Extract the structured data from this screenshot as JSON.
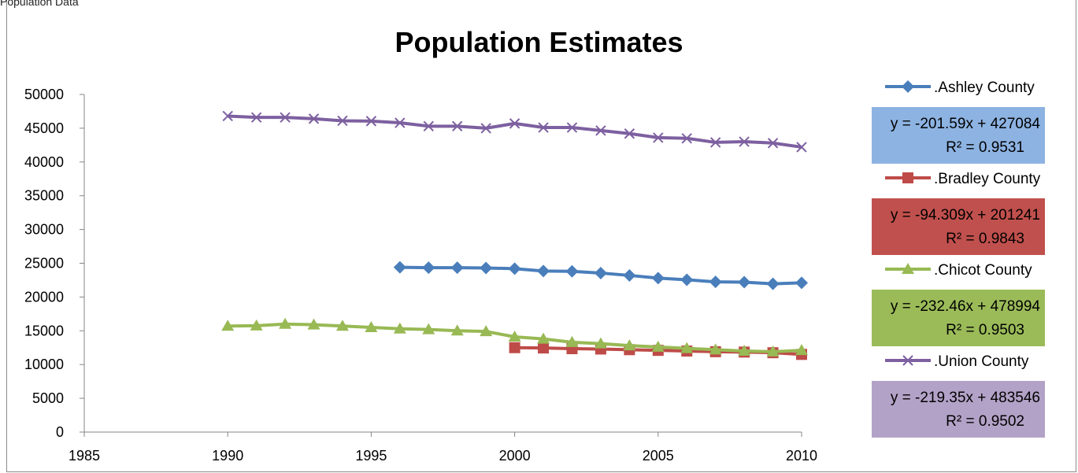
{
  "page": {
    "top_text": "Population Data"
  },
  "colors": {
    "ashley": "#4a7ebb",
    "bradley": "#be4b48",
    "chicot": "#98b954",
    "union": "#7d60a0",
    "ashley_box": "#8db3e2",
    "bradley_box": "#c0504d",
    "chicot_box": "#9bbb59",
    "union_box": "#b3a2c7"
  },
  "chart_data": {
    "type": "line",
    "title": "Population Estimates",
    "xlabel": "",
    "ylabel": "",
    "xlim": [
      1985,
      2010
    ],
    "ylim": [
      0,
      50000
    ],
    "x_ticks": [
      "1985",
      "1990",
      "1995",
      "2000",
      "2005",
      "2010"
    ],
    "y_ticks": [
      "0",
      "5000",
      "10000",
      "15000",
      "20000",
      "25000",
      "30000",
      "35000",
      "40000",
      "45000",
      "50000"
    ],
    "grid": false,
    "legend_position": "right",
    "series": [
      {
        "name": ".Ashley County",
        "marker": "diamond",
        "color_key": "ashley",
        "x": [
          1996,
          1997,
          1998,
          1999,
          2000,
          2001,
          2002,
          2003,
          2004,
          2005,
          2006,
          2007,
          2008,
          2009,
          2010
        ],
        "values": [
          24400,
          24350,
          24350,
          24300,
          24200,
          23850,
          23800,
          23550,
          23200,
          22800,
          22550,
          22250,
          22200,
          21950,
          22100
        ],
        "trendline_eq": "y = -201.59x + 427084",
        "trendline_r2": "R² = 0.9531"
      },
      {
        "name": ".Bradley County",
        "marker": "square",
        "color_key": "bradley",
        "x": [
          2000,
          2001,
          2002,
          2003,
          2004,
          2005,
          2006,
          2007,
          2008,
          2009,
          2010
        ],
        "values": [
          12500,
          12450,
          12350,
          12300,
          12200,
          12100,
          12000,
          11900,
          11850,
          11750,
          11500
        ],
        "trendline_eq": "y = -94.309x + 201241",
        "trendline_r2": "R² = 0.9843"
      },
      {
        "name": ".Chicot County",
        "marker": "triangle",
        "color_key": "chicot",
        "x": [
          1990,
          1991,
          1992,
          1993,
          1994,
          1995,
          1996,
          1997,
          1998,
          1999,
          2000,
          2001,
          2002,
          2003,
          2004,
          2005,
          2006,
          2007,
          2008,
          2009,
          2010
        ],
        "values": [
          15700,
          15750,
          16000,
          15900,
          15700,
          15500,
          15300,
          15200,
          15000,
          14900,
          14100,
          13800,
          13300,
          13100,
          12800,
          12600,
          12400,
          12200,
          12000,
          11900,
          12100
        ],
        "trendline_eq": "y = -232.46x + 478994",
        "trendline_r2": "R² = 0.9503"
      },
      {
        "name": ".Union County",
        "marker": "x",
        "color_key": "union",
        "x": [
          1990,
          1991,
          1992,
          1993,
          1994,
          1995,
          1996,
          1997,
          1998,
          1999,
          2000,
          2001,
          2002,
          2003,
          2004,
          2005,
          2006,
          2007,
          2008,
          2009,
          2010
        ],
        "values": [
          46800,
          46600,
          46600,
          46400,
          46100,
          46050,
          45800,
          45300,
          45300,
          45000,
          45700,
          45100,
          45100,
          44650,
          44200,
          43600,
          43500,
          42900,
          43000,
          42800,
          42200
        ],
        "trendline_eq": "y = -219.35x + 483546",
        "trendline_r2": "R² = 0.9502"
      }
    ]
  }
}
